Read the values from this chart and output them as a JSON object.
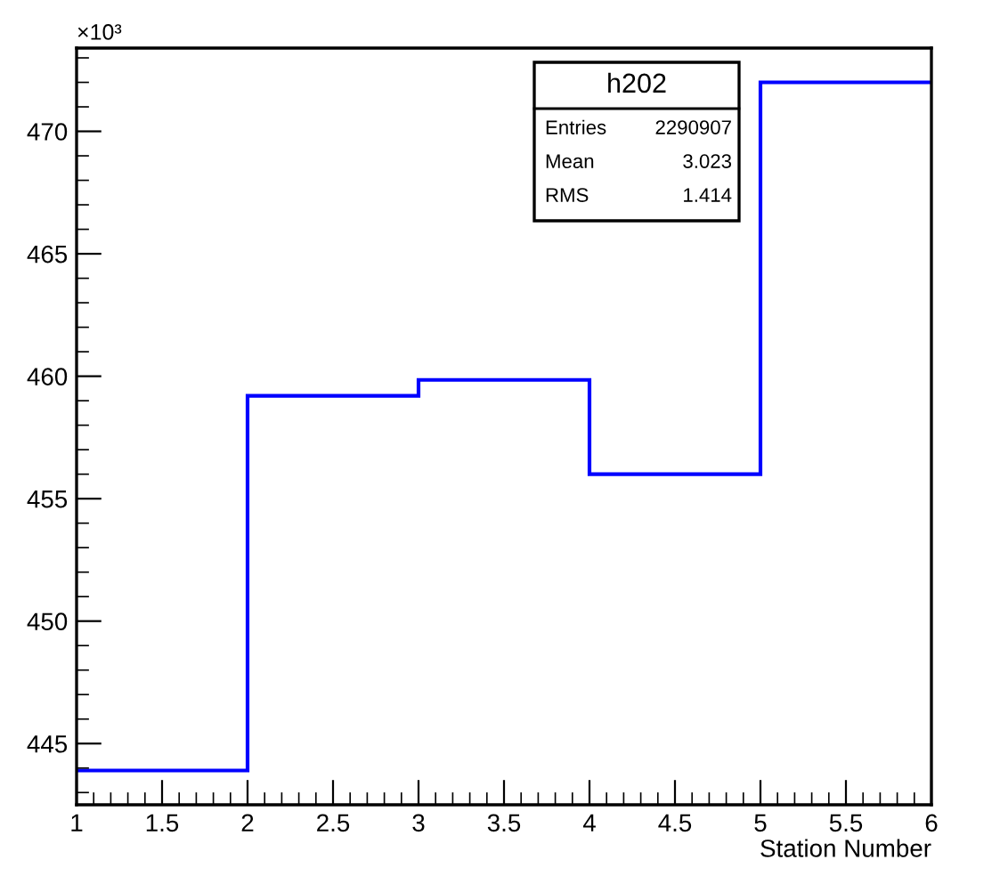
{
  "chart_data": {
    "type": "histogram",
    "bins": [
      1,
      2,
      3,
      4,
      5,
      6
    ],
    "values": [
      443.9,
      459.2,
      459.85,
      456.0,
      472.0
    ],
    "color": "#0000ff",
    "xlabel": "Station Number",
    "xlim": [
      1,
      6
    ],
    "xticks": [
      1,
      1.5,
      2,
      2.5,
      3,
      3.5,
      4,
      4.5,
      5,
      5.5,
      6
    ],
    "ylim": [
      442.5,
      473.4
    ],
    "yticks": [
      445,
      450,
      455,
      460,
      465,
      470
    ],
    "annotations": [
      "×10³",
      "h202",
      "Entries 2290907",
      "Mean 3.023",
      "RMS 1.414"
    ],
    "grid": false
  }
}
